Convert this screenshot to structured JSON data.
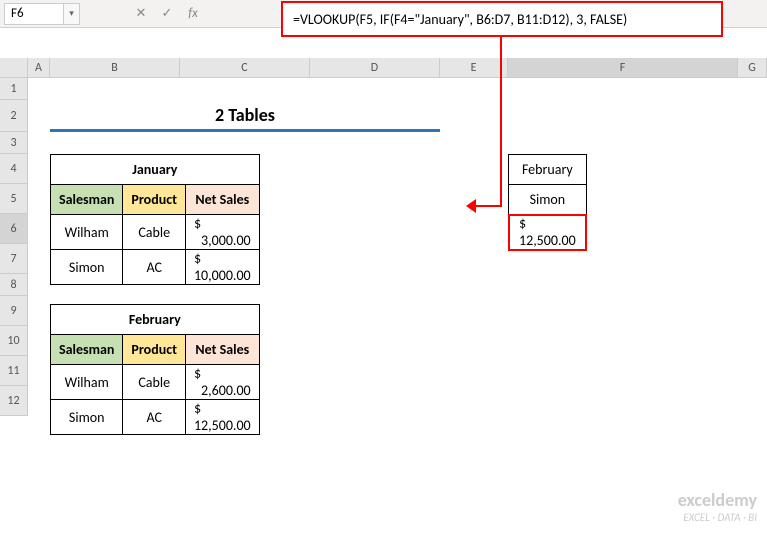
{
  "namebox": "F6",
  "formula": "=VLOOKUP(F5, IF(F4=\"January\", B6:D7, B11:D12), 3, FALSE)",
  "cols": [
    "A",
    "B",
    "C",
    "D",
    "E",
    "F",
    "G"
  ],
  "rows": [
    "1",
    "2",
    "3",
    "4",
    "5",
    "6",
    "7",
    "8",
    "9",
    "10",
    "11",
    "12"
  ],
  "title": "2 Tables",
  "t1": {
    "caption": "January",
    "headers": [
      "Salesman",
      "Product",
      "Net Sales"
    ],
    "rows": [
      [
        "Wilham",
        "Cable",
        "3,000.00"
      ],
      [
        "Simon",
        "AC",
        "10,000.00"
      ]
    ]
  },
  "t2": {
    "caption": "February",
    "headers": [
      "Salesman",
      "Product",
      "Net Sales"
    ],
    "rows": [
      [
        "Wilham",
        "Cable",
        "2,600.00"
      ],
      [
        "Simon",
        "AC",
        "12,500.00"
      ]
    ]
  },
  "lookup": {
    "month": "February",
    "name": "Simon",
    "result": "12,500.00"
  },
  "currency": "$",
  "fx_label": "fx",
  "cancel_icon": "✕",
  "confirm_icon": "✓",
  "dd_icon": "▾",
  "wm": {
    "brand": "exceldemy",
    "sub": "EXCEL · DATA · BI"
  }
}
